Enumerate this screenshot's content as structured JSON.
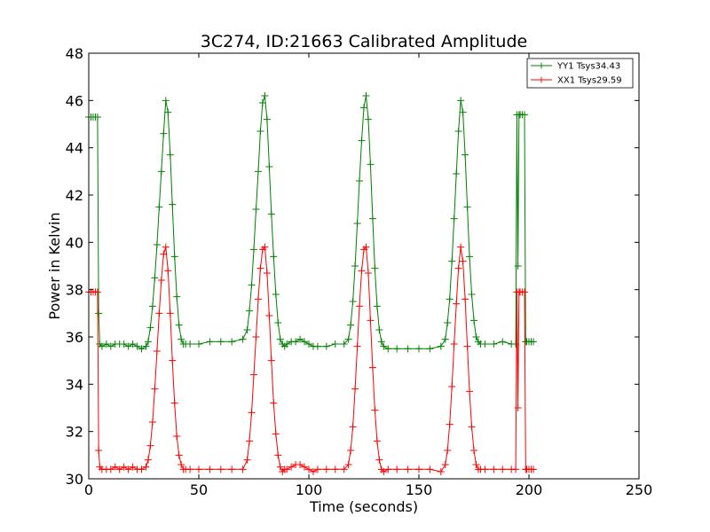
{
  "chart_data": {
    "type": "line",
    "title": "3C274, ID:21663 Calibrated Amplitude",
    "xlabel": "Time (seconds)",
    "ylabel": "Power in Kelvin",
    "xlim": [
      0,
      250
    ],
    "ylim": [
      30,
      48
    ],
    "xticks": [
      0,
      50,
      100,
      150,
      200,
      250
    ],
    "yticks": [
      30,
      32,
      34,
      36,
      38,
      40,
      42,
      44,
      46,
      48
    ],
    "grid": false,
    "legend_position": "top-right",
    "marker": "+",
    "series": [
      {
        "name": "YY1 Tsys34.43",
        "color": "#008000",
        "x": [
          0,
          1,
          2,
          3,
          4,
          4.5,
          5,
          6,
          8,
          10,
          12,
          14,
          16,
          18,
          20,
          22,
          24,
          26,
          27,
          28,
          29,
          30,
          31,
          32,
          33,
          34,
          35,
          36,
          37,
          38,
          39,
          40,
          41,
          42,
          43,
          44,
          46,
          50,
          55,
          60,
          65,
          70,
          72,
          73,
          74,
          75,
          76,
          77,
          78,
          79,
          80,
          81,
          82,
          83,
          84,
          85,
          86,
          87,
          88,
          89,
          90,
          92,
          94,
          96,
          98,
          100,
          102,
          104,
          108,
          112,
          116,
          118,
          119,
          120,
          121,
          122,
          123,
          124,
          125,
          126,
          127,
          128,
          129,
          130,
          131,
          132,
          133,
          134,
          136,
          140,
          145,
          150,
          155,
          160,
          162,
          163,
          164,
          165,
          166,
          167,
          168,
          169,
          170,
          171,
          172,
          173,
          174,
          175,
          176,
          177,
          178,
          180,
          184,
          188,
          192,
          194,
          194.5,
          195,
          195.5,
          196,
          197,
          198,
          198.5,
          199,
          200,
          201,
          202
        ],
        "values": [
          45.3,
          45.3,
          45.3,
          45.3,
          45.3,
          37.0,
          35.7,
          35.6,
          35.7,
          35.6,
          35.7,
          35.7,
          35.7,
          35.6,
          35.7,
          35.6,
          35.5,
          35.6,
          35.8,
          36.4,
          37.3,
          38.5,
          39.9,
          41.5,
          43.0,
          44.6,
          46.0,
          45.5,
          43.7,
          41.6,
          39.4,
          37.7,
          36.5,
          35.9,
          35.7,
          35.7,
          35.7,
          35.7,
          35.8,
          35.8,
          35.8,
          35.9,
          36.3,
          37.1,
          38.2,
          39.7,
          41.4,
          43.0,
          44.7,
          45.9,
          46.2,
          45.2,
          43.2,
          41.2,
          39.4,
          37.8,
          36.6,
          35.9,
          35.7,
          35.6,
          35.7,
          35.8,
          35.8,
          35.9,
          35.8,
          35.7,
          35.6,
          35.6,
          35.6,
          35.7,
          35.7,
          35.9,
          36.5,
          37.5,
          39.0,
          40.8,
          42.6,
          44.3,
          45.7,
          46.2,
          45.2,
          43.3,
          41.0,
          38.9,
          37.3,
          36.3,
          35.8,
          35.6,
          35.5,
          35.5,
          35.5,
          35.5,
          35.5,
          35.6,
          35.9,
          36.6,
          37.6,
          39.2,
          41.0,
          42.9,
          44.7,
          46.0,
          45.5,
          43.7,
          41.5,
          39.4,
          37.8,
          36.7,
          36.0,
          35.8,
          35.7,
          35.7,
          35.7,
          35.8,
          35.7,
          35.7,
          45.4,
          39.0,
          45.4,
          45.4,
          45.4,
          45.4,
          35.8,
          35.8,
          35.8,
          35.8,
          35.8
        ]
      },
      {
        "name": "XX1 Tsys29.59",
        "color": "#ff0000",
        "x": [
          0,
          1,
          2,
          3,
          4,
          4.5,
          5,
          6,
          8,
          10,
          12,
          14,
          16,
          18,
          20,
          22,
          24,
          26,
          27,
          28,
          29,
          30,
          31,
          32,
          33,
          34,
          35,
          36,
          37,
          38,
          39,
          40,
          41,
          42,
          43,
          44,
          46,
          50,
          55,
          60,
          65,
          70,
          72,
          73,
          74,
          75,
          76,
          77,
          78,
          79,
          80,
          81,
          82,
          83,
          84,
          85,
          86,
          87,
          88,
          89,
          90,
          92,
          94,
          96,
          98,
          100,
          102,
          104,
          108,
          112,
          116,
          118,
          119,
          120,
          121,
          122,
          123,
          124,
          125,
          126,
          127,
          128,
          129,
          130,
          131,
          132,
          133,
          134,
          136,
          140,
          145,
          150,
          155,
          160,
          162,
          163,
          164,
          165,
          166,
          167,
          168,
          169,
          170,
          171,
          172,
          173,
          174,
          175,
          176,
          177,
          178,
          180,
          184,
          188,
          192,
          194,
          194.5,
          195,
          195.5,
          196,
          197,
          198,
          198.5,
          199,
          200,
          201,
          202
        ],
        "values": [
          37.9,
          37.9,
          37.9,
          37.9,
          37.9,
          31.2,
          30.5,
          30.4,
          30.4,
          30.4,
          30.5,
          30.4,
          30.5,
          30.4,
          30.5,
          30.4,
          30.4,
          30.5,
          30.8,
          31.4,
          32.4,
          33.8,
          35.4,
          37.0,
          38.4,
          39.5,
          39.8,
          38.8,
          37.0,
          35.0,
          33.2,
          31.8,
          31.0,
          30.6,
          30.4,
          30.4,
          30.4,
          30.4,
          30.4,
          30.4,
          30.4,
          30.4,
          30.8,
          31.6,
          32.8,
          34.4,
          36.0,
          37.6,
          38.9,
          39.7,
          39.8,
          38.7,
          36.9,
          35.0,
          33.2,
          31.9,
          31.0,
          30.5,
          30.3,
          30.4,
          30.4,
          30.5,
          30.6,
          30.6,
          30.5,
          30.4,
          30.3,
          30.4,
          30.4,
          30.4,
          30.4,
          30.6,
          31.2,
          32.2,
          33.8,
          35.6,
          37.3,
          38.8,
          39.7,
          39.8,
          38.7,
          36.7,
          34.7,
          32.9,
          31.6,
          30.8,
          30.4,
          30.3,
          30.4,
          30.4,
          30.4,
          30.4,
          30.4,
          30.3,
          30.6,
          31.2,
          32.3,
          33.9,
          35.7,
          37.4,
          38.9,
          39.8,
          39.2,
          37.6,
          35.6,
          33.7,
          32.2,
          31.2,
          30.6,
          30.4,
          30.4,
          30.4,
          30.4,
          30.4,
          30.4,
          30.4,
          37.9,
          33.0,
          37.9,
          37.9,
          37.9,
          37.9,
          30.4,
          30.4,
          30.4,
          30.4,
          30.4
        ]
      }
    ]
  }
}
